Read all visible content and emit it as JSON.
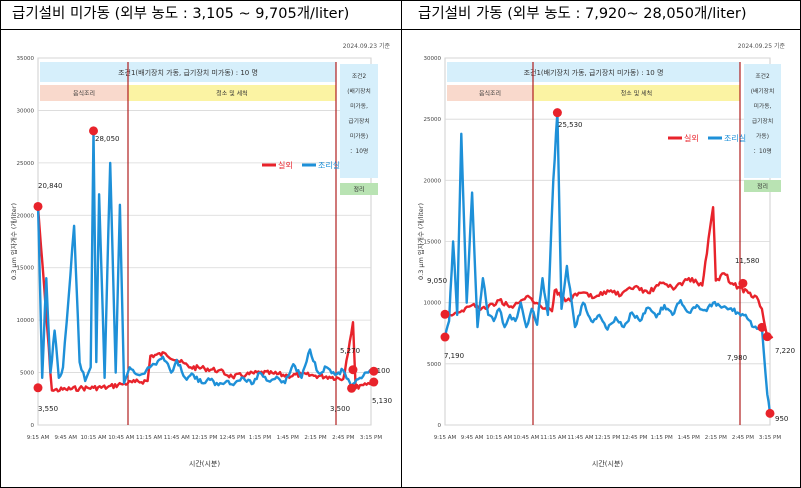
{
  "headers": {
    "left": "급기설비 미가동 (외부 농도 : 3,105 ~ 9,705개/liter)",
    "right": "급기설비 가동 (외부 농도 : 7,920~ 28,050개/liter)"
  },
  "chart_data": [
    {
      "type": "line",
      "date": "2024.09.23 기준",
      "ylabel": "0.3 μm 입자개수 (개/liter)",
      "xlabel": "시간(시분)",
      "ylim": [
        0,
        35000
      ],
      "yticks": [
        "0",
        "5000",
        "10000",
        "15000",
        "20000",
        "25000",
        "30000",
        "35000"
      ],
      "xticks": [
        "9:15 AM",
        "9:45 AM",
        "10:15 AM",
        "10:45 AM",
        "11:15 AM",
        "11:45 AM",
        "12:15 PM",
        "12:45 PM",
        "1:15 PM",
        "1:45 PM",
        "2:15 PM",
        "2:45 PM",
        "3:15 PM"
      ],
      "legend": [
        "실외",
        "조리실"
      ],
      "condition1": "조건1(배기장치 가동, 급기장치 미가동) : 10 명",
      "phase_cooking": "음식조리",
      "phase_cleaning": "청소 및 세척",
      "condition2": [
        "조건2",
        "(배기장치",
        "미가동,",
        "급기장치",
        "미가동)",
        "：10명"
      ],
      "phase_end": "정리",
      "annotations": [
        "20,840",
        "28,050",
        "3,550",
        "5,270",
        "3,500",
        "4,100",
        "5,130"
      ],
      "series": [
        {
          "name": "실외",
          "color": "#e8232b",
          "x": [
            0,
            0.5,
            1,
            1.5,
            2,
            2.5,
            3,
            3.5,
            3.95,
            4.05,
            4.6,
            5,
            5.5,
            6,
            6.5,
            7,
            7.5,
            8,
            8.5,
            9,
            9.5,
            10,
            10.5,
            11,
            11.35,
            11.45,
            11.6,
            11.9,
            12.1
          ],
          "y": [
            20840,
            3300,
            3400,
            3500,
            3550,
            3600,
            3900,
            4100,
            4200,
            6600,
            6800,
            6200,
            5500,
            5400,
            5200,
            4600,
            4800,
            5000,
            4900,
            4700,
            4800,
            4700,
            4600,
            4400,
            9800,
            3500,
            3800,
            4000,
            4100
          ]
        },
        {
          "name": "조리실",
          "color": "#1e90d8",
          "x": [
            0,
            0.15,
            0.3,
            0.45,
            0.6,
            0.75,
            0.9,
            1.1,
            1.3,
            1.5,
            1.7,
            1.9,
            2.0,
            2.1,
            2.2,
            2.4,
            2.6,
            2.8,
            2.95,
            3.1,
            3.3,
            3.6,
            3.9,
            4.2,
            4.5,
            4.8,
            5.0,
            5.3,
            5.6,
            5.9,
            6.2,
            6.5,
            6.8,
            7.1,
            7.4,
            7.7,
            8.0,
            8.3,
            8.6,
            8.9,
            9.2,
            9.5,
            9.8,
            10.1,
            10.4,
            10.7,
            11.0,
            11.3,
            11.6,
            11.9,
            12.1
          ],
          "y": [
            21000,
            4500,
            14000,
            5000,
            9000,
            4500,
            5500,
            12000,
            19000,
            6000,
            4200,
            5500,
            28050,
            6000,
            22000,
            4500,
            25000,
            5000,
            21000,
            4000,
            5500,
            4800,
            5200,
            5800,
            6500,
            5000,
            6200,
            4500,
            4800,
            4000,
            4300,
            3800,
            4200,
            4000,
            4500,
            3900,
            5000,
            4200,
            4600,
            4000,
            5800,
            4500,
            7200,
            5000,
            5500,
            4800,
            5200,
            3500,
            4500,
            5000,
            5130
          ]
        }
      ]
    },
    {
      "type": "line",
      "date": "2024.09.25 기준",
      "ylabel": "0.3 μm 입자개수 (개/liter)",
      "xlabel": "시간(시분)",
      "ylim": [
        0,
        30000
      ],
      "yticks": [
        "0",
        "5000",
        "10000",
        "15000",
        "20000",
        "25000",
        "30000"
      ],
      "xticks": [
        "9:15 AM",
        "9:45 AM",
        "10:15 AM",
        "10:45 AM",
        "11:15 AM",
        "11:45 AM",
        "12:15 PM",
        "12:45 PM",
        "1:15 PM",
        "1:45 PM",
        "2:15 PM",
        "2:45 PM",
        "3:15 PM"
      ],
      "legend": [
        "실외",
        "조리실"
      ],
      "condition1": "조건1(배기장치 가동, 급기장치 미가동) : 10 명",
      "phase_cooking": "음식조리",
      "phase_cleaning": "청소 및 세척",
      "condition2": [
        "조건2",
        "(배기장치",
        "미가동,",
        "급기장치",
        "가동)",
        "：10명"
      ],
      "phase_end": "정리",
      "annotations": [
        "25,530",
        "9,050",
        "7,190",
        "11,580",
        "7,980",
        "7,220",
        "950"
      ],
      "series": [
        {
          "name": "실외",
          "color": "#e8232b",
          "x": [
            0,
            0.5,
            1,
            1.5,
            2,
            2.5,
            3,
            3.5,
            3.95,
            4.05,
            4.5,
            5,
            5.5,
            6,
            6.5,
            7,
            7.5,
            8,
            8.5,
            9,
            9.5,
            9.9,
            10,
            10.3,
            10.6,
            10.9,
            11.2,
            11.5,
            11.7,
            11.9,
            12.1
          ],
          "y": [
            9050,
            9200,
            9800,
            9500,
            10200,
            9600,
            10500,
            9800,
            9300,
            11000,
            10200,
            10800,
            10400,
            11000,
            10600,
            11300,
            10800,
            11600,
            11200,
            12000,
            11400,
            17800,
            11800,
            12400,
            11580,
            11200,
            10800,
            10500,
            9500,
            7220,
            7220
          ]
        },
        {
          "name": "조리실",
          "color": "#1e90d8",
          "x": [
            0,
            0.15,
            0.3,
            0.45,
            0.6,
            0.8,
            1.0,
            1.2,
            1.4,
            1.6,
            1.8,
            2.0,
            2.2,
            2.4,
            2.6,
            2.8,
            3.0,
            3.2,
            3.4,
            3.6,
            3.8,
            4.0,
            4.15,
            4.3,
            4.5,
            4.8,
            5.1,
            5.4,
            5.7,
            6.0,
            6.3,
            6.6,
            6.9,
            7.2,
            7.5,
            7.8,
            8.1,
            8.4,
            8.7,
            9.0,
            9.3,
            9.6,
            9.9,
            10.2,
            10.5,
            10.8,
            11.1,
            11.4,
            11.7,
            11.9,
            12.0
          ],
          "y": [
            7190,
            8500,
            15000,
            9000,
            23800,
            10000,
            19000,
            8000,
            12000,
            9000,
            8500,
            9500,
            8000,
            9000,
            8500,
            10000,
            8000,
            9500,
            8200,
            12000,
            9000,
            20000,
            25530,
            9500,
            13000,
            8000,
            10000,
            8500,
            9000,
            7800,
            8800,
            8000,
            9200,
            8500,
            9600,
            8800,
            9800,
            9000,
            10200,
            9200,
            9800,
            9400,
            10000,
            9600,
            9500,
            9200,
            9000,
            8000,
            7980,
            2500,
            950
          ]
        }
      ]
    }
  ]
}
